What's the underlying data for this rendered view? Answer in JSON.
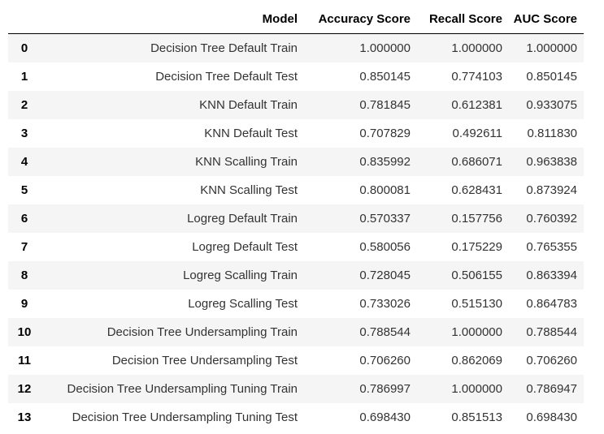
{
  "table": {
    "columns": [
      "",
      "Model",
      "Accuracy Score",
      "Recall Score",
      "AUC Score"
    ],
    "rows": [
      {
        "index": "0",
        "model": "Decision Tree Default Train",
        "accuracy": "1.000000",
        "recall": "1.000000",
        "auc": "1.000000"
      },
      {
        "index": "1",
        "model": "Decision Tree Default Test",
        "accuracy": "0.850145",
        "recall": "0.774103",
        "auc": "0.850145"
      },
      {
        "index": "2",
        "model": "KNN Default Train",
        "accuracy": "0.781845",
        "recall": "0.612381",
        "auc": "0.933075"
      },
      {
        "index": "3",
        "model": "KNN Default Test",
        "accuracy": "0.707829",
        "recall": "0.492611",
        "auc": "0.811830"
      },
      {
        "index": "4",
        "model": "KNN Scalling Train",
        "accuracy": "0.835992",
        "recall": "0.686071",
        "auc": "0.963838"
      },
      {
        "index": "5",
        "model": "KNN Scalling Test",
        "accuracy": "0.800081",
        "recall": "0.628431",
        "auc": "0.873924"
      },
      {
        "index": "6",
        "model": "Logreg Default Train",
        "accuracy": "0.570337",
        "recall": "0.157756",
        "auc": "0.760392"
      },
      {
        "index": "7",
        "model": "Logreg Default Test",
        "accuracy": "0.580056",
        "recall": "0.175229",
        "auc": "0.765355"
      },
      {
        "index": "8",
        "model": "Logreg Scalling Train",
        "accuracy": "0.728045",
        "recall": "0.506155",
        "auc": "0.863394"
      },
      {
        "index": "9",
        "model": "Logreg Scalling Test",
        "accuracy": "0.733026",
        "recall": "0.515130",
        "auc": "0.864783"
      },
      {
        "index": "10",
        "model": "Decision Tree Undersampling Train",
        "accuracy": "0.788544",
        "recall": "1.000000",
        "auc": "0.788544"
      },
      {
        "index": "11",
        "model": "Decision Tree Undersampling Test",
        "accuracy": "0.706260",
        "recall": "0.862069",
        "auc": "0.706260"
      },
      {
        "index": "12",
        "model": "Decision Tree Undersampling Tuning Train",
        "accuracy": "0.786997",
        "recall": "1.000000",
        "auc": "0.786947"
      },
      {
        "index": "13",
        "model": "Decision Tree Undersampling Tuning Test",
        "accuracy": "0.698430",
        "recall": "0.851513",
        "auc": "0.698430"
      }
    ]
  }
}
